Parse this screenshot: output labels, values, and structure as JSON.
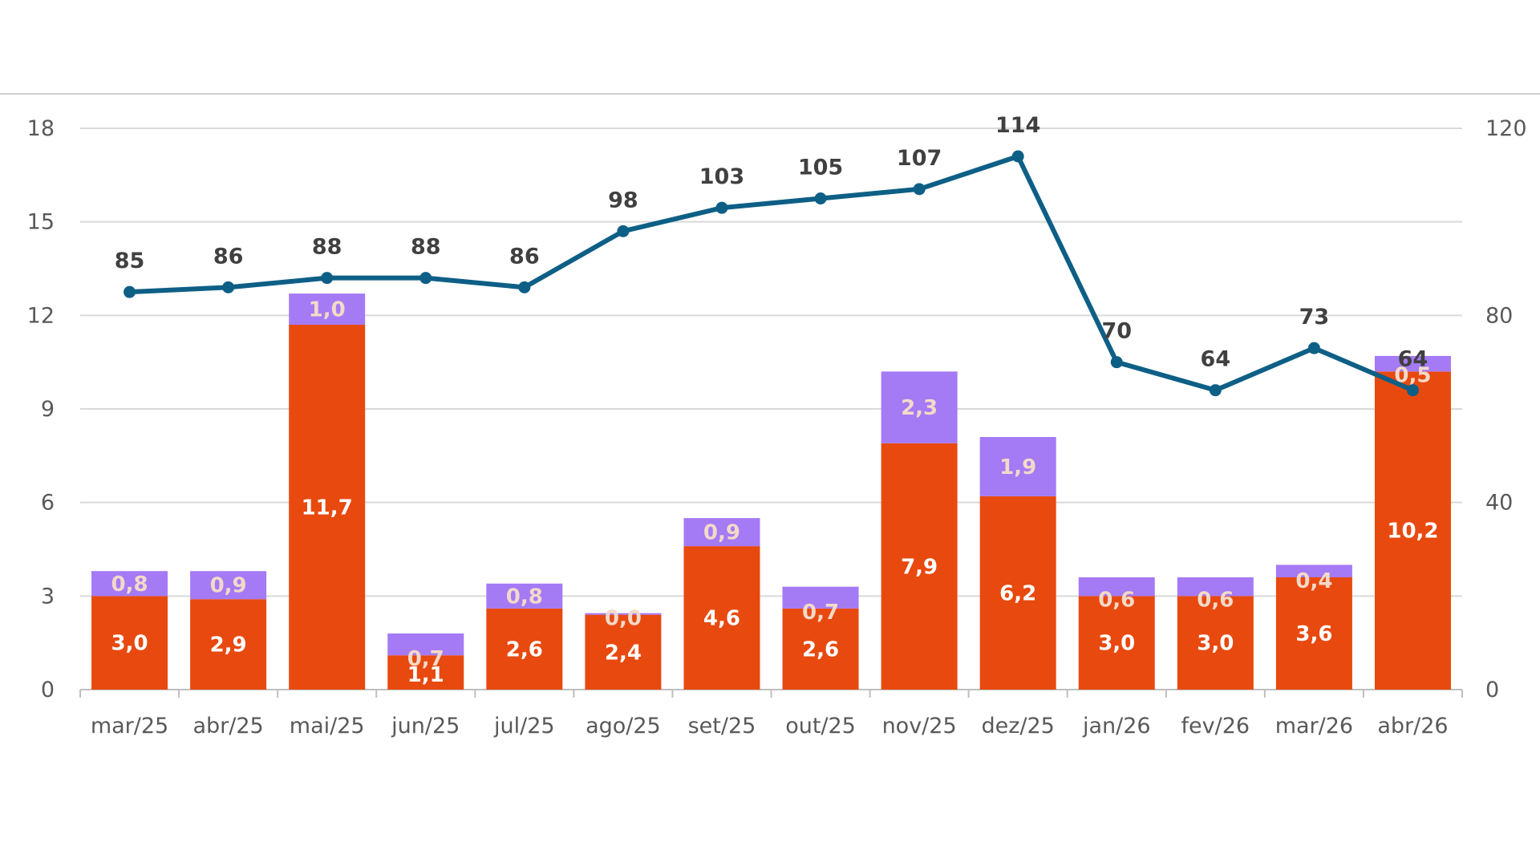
{
  "chart_data": {
    "type": "bar",
    "stacked": true,
    "categories": [
      "mar/25",
      "abr/25",
      "mai/25",
      "jun/25",
      "jul/25",
      "ago/25",
      "set/25",
      "out/25",
      "nov/25",
      "dez/25",
      "jan/26",
      "fev/26",
      "mar/26",
      "abr/26"
    ],
    "series": [
      {
        "type": "bar",
        "axis": "left",
        "color": "#e8490f",
        "values": [
          3.0,
          2.9,
          11.7,
          1.1,
          2.6,
          2.4,
          4.6,
          2.6,
          7.9,
          6.2,
          3.0,
          3.0,
          3.6,
          10.2
        ],
        "labels": [
          "3,0",
          "2,9",
          "11,7",
          "1,1",
          "2,6",
          "2,4",
          "4,6",
          "2,6",
          "7,9",
          "6,2",
          "3,0",
          "3,0",
          "3,6",
          "10,2"
        ]
      },
      {
        "type": "bar",
        "axis": "left",
        "color": "#a47af5",
        "values": [
          0.8,
          0.9,
          1.0,
          0.7,
          0.8,
          0.0,
          0.9,
          0.7,
          2.3,
          1.9,
          0.6,
          0.6,
          0.4,
          0.5
        ],
        "labels": [
          "0,8",
          "0,9",
          "1,0",
          "0,7",
          "0,8",
          "0,0",
          "0,9",
          "0,7",
          "2,3",
          "1,9",
          "0,6",
          "0,6",
          "0,4",
          "0,5"
        ]
      },
      {
        "type": "line",
        "axis": "right",
        "color": "#0e5f86",
        "values": [
          85,
          86,
          88,
          88,
          86,
          98,
          103,
          105,
          107,
          114,
          70,
          64,
          73,
          64
        ],
        "labels": [
          "85",
          "86",
          "88",
          "88",
          "86",
          "98",
          "103",
          "105",
          "107",
          "114",
          "70",
          "64",
          "73",
          "64"
        ]
      }
    ],
    "left_axis": {
      "ylim": [
        0,
        18
      ],
      "ticks": [
        0,
        3,
        6,
        9,
        12,
        15,
        18
      ],
      "tick_labels": [
        "0",
        "3",
        "6",
        "9",
        "12",
        "15",
        "18"
      ]
    },
    "right_axis": {
      "ylim": [
        0,
        120
      ],
      "ticks": [
        0,
        40,
        80,
        120
      ],
      "tick_labels": [
        "0",
        "40",
        "80",
        "120"
      ]
    },
    "grid": true,
    "gridline_color": "#d9d9d9",
    "axis_color": "#bfbfbf"
  }
}
